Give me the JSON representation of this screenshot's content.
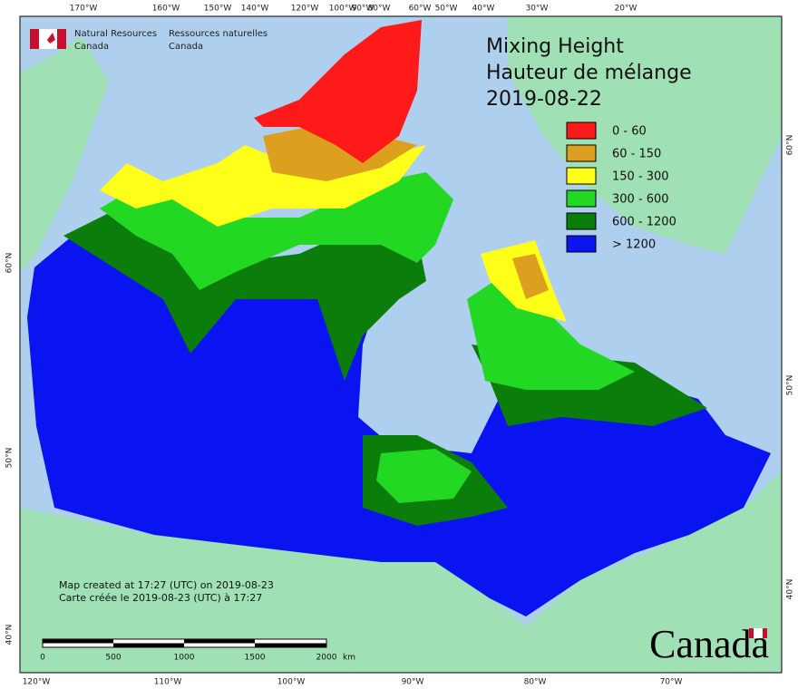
{
  "header": {
    "agency": [
      "Natural Resources",
      "Canada"
    ],
    "agence": [
      "Ressources naturelles",
      "Canada"
    ]
  },
  "title": [
    "Mixing Height",
    "Hauteur de mélange",
    "2019-08-22"
  ],
  "legend": [
    {
      "label": "0 - 60",
      "color": "#ff1a1a"
    },
    {
      "label": "60 - 150",
      "color": "#dca01e"
    },
    {
      "label": "150 - 300",
      "color": "#ffff1a"
    },
    {
      "label": "300 - 600",
      "color": "#22d822"
    },
    {
      "label": "600 - 1200",
      "color": "#0a7d0a"
    },
    {
      "label": "> 1200",
      "color": "#0a14f0"
    }
  ],
  "graticule": {
    "top": [
      "170°W",
      "160°W",
      "150°W",
      "140°W",
      "120°W",
      "100°W",
      "90°W",
      "80°W",
      "60°W",
      "50°W",
      "40°W",
      "30°W",
      "20°W"
    ],
    "bottom": [
      "120°W",
      "110°W",
      "100°W",
      "90°W",
      "80°W",
      "70°W"
    ],
    "left": [
      "60°N",
      "50°N",
      "40°N"
    ],
    "right": [
      "60°N",
      "50°N",
      "40°N"
    ]
  },
  "credits": [
    "Map created at 17:27 (UTC) on 2019-08-23",
    "Carte créée le 2019-08-23 (UTC) à 17:27"
  ],
  "scale_bar": {
    "labels": [
      "0",
      "500",
      "1000",
      "1500",
      "2000"
    ],
    "unit": "km"
  },
  "wordmark": "Canada"
}
